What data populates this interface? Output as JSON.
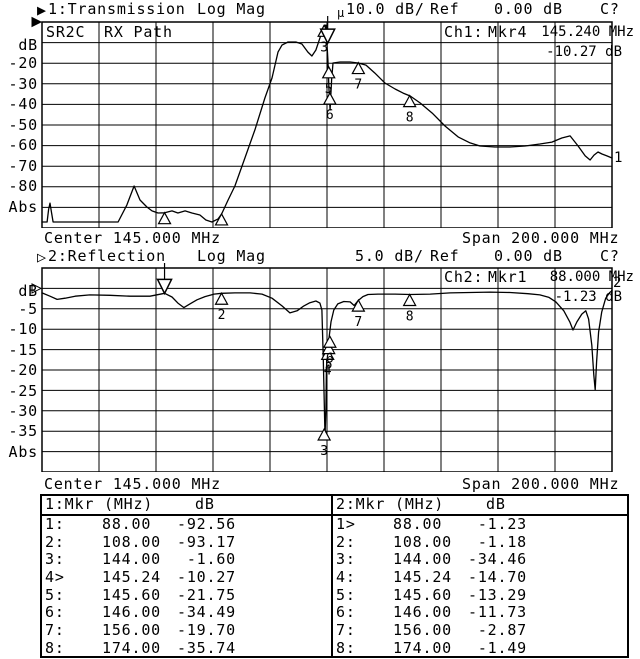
{
  "colors": {
    "foreground": "#000000",
    "background": "#ffffff"
  },
  "channel1": {
    "title": "1:Transmission",
    "format": "Log Mag",
    "scale_glyph": "µ",
    "scale": "10.0 dB/",
    "ref_label": "Ref",
    "ref_value": "0.00 dB",
    "status": "C?",
    "label_cell_1": "SR2C",
    "label_cell_2": "RX Path",
    "readout_channel": "Ch1:",
    "readout_marker": "Mkr4",
    "readout_freq": "145.240 MHz",
    "readout_value": "-10.27 dB",
    "y_unit": "dB",
    "y_bottom": "Abs",
    "y_ticks": [
      "-20",
      "-30",
      "-40",
      "-50",
      "-60",
      "-70",
      "-80"
    ],
    "center": "Center 145.000 MHz",
    "span": "Span 200.000 MHz",
    "trace_label": "1"
  },
  "channel2": {
    "title": "2:Reflection",
    "format": "Log Mag",
    "scale": "5.0 dB/",
    "ref_label": "Ref",
    "ref_value": "0.00 dB",
    "status": "C?",
    "readout_channel": "Ch2:",
    "readout_marker": "Mkr1",
    "readout_freq": "88.000 MHz",
    "readout_value": "-1.23 dB",
    "y_unit": "dB",
    "y_bottom": "Abs",
    "y_ticks": [
      "-5",
      "-10",
      "-15",
      "-20",
      "-25",
      "-30",
      "-35"
    ],
    "center": "Center 145.000 MHz",
    "span": "Span 200.000 MHz",
    "trace_label": "2"
  },
  "tables": [
    {
      "header": "1:Mkr (MHz)",
      "header_db": "dB",
      "rows": [
        {
          "num": "1:",
          "freq": "88.00",
          "db": "-92.56"
        },
        {
          "num": "2:",
          "freq": "108.00",
          "db": "-93.17"
        },
        {
          "num": "3:",
          "freq": "144.00",
          "db": "-1.60"
        },
        {
          "num": "4>",
          "freq": "145.24",
          "db": "-10.27"
        },
        {
          "num": "5:",
          "freq": "145.60",
          "db": "-21.75"
        },
        {
          "num": "6:",
          "freq": "146.00",
          "db": "-34.49"
        },
        {
          "num": "7:",
          "freq": "156.00",
          "db": "-19.70"
        },
        {
          "num": "8:",
          "freq": "174.00",
          "db": "-35.74"
        }
      ]
    },
    {
      "header": "2:Mkr (MHz)",
      "header_db": "dB",
      "rows": [
        {
          "num": "1>",
          "freq": "88.00",
          "db": "-1.23"
        },
        {
          "num": "2:",
          "freq": "108.00",
          "db": "-1.18"
        },
        {
          "num": "3:",
          "freq": "144.00",
          "db": "-34.46"
        },
        {
          "num": "4:",
          "freq": "145.24",
          "db": "-14.70"
        },
        {
          "num": "5:",
          "freq": "145.60",
          "db": "-13.29"
        },
        {
          "num": "6:",
          "freq": "146.00",
          "db": "-11.73"
        },
        {
          "num": "7:",
          "freq": "156.00",
          "db": "-2.87"
        },
        {
          "num": "8:",
          "freq": "174.00",
          "db": "-1.49"
        }
      ]
    }
  ],
  "chart_data": [
    {
      "type": "line",
      "channel": 1,
      "title": "1:Transmission",
      "format": "Log Mag",
      "scale_db_per_div": 10.0,
      "ref_db": 0.0,
      "center_mhz": 145.0,
      "span_mhz": 200.0,
      "x_range_mhz": [
        45,
        245
      ],
      "y_range_db": [
        0,
        -100
      ],
      "grid": true,
      "active_marker": 4,
      "markers": [
        {
          "n": 1,
          "mhz": 88.0,
          "db": -92.56,
          "label_shown": false
        },
        {
          "n": 2,
          "mhz": 108.0,
          "db": -93.17,
          "label_shown": false
        },
        {
          "n": 3,
          "mhz": 144.0,
          "db": -1.6,
          "label_shown": true
        },
        {
          "n": 4,
          "mhz": 145.24,
          "db": -10.27,
          "style": "active"
        },
        {
          "n": 5,
          "mhz": 145.6,
          "db": -21.75,
          "label_shown": true
        },
        {
          "n": 6,
          "mhz": 146.0,
          "db": -34.49,
          "label_shown": true
        },
        {
          "n": 7,
          "mhz": 156.0,
          "db": -19.7,
          "label_shown": true
        },
        {
          "n": 8,
          "mhz": 174.0,
          "db": -35.74,
          "label_shown": true
        }
      ],
      "trace": [
        [
          45.0,
          -97.1
        ],
        [
          46.8,
          -97.1
        ],
        [
          47.3,
          -91.0
        ],
        [
          47.8,
          -87.9
        ],
        [
          48.4,
          -93.0
        ],
        [
          48.9,
          -97.1
        ],
        [
          71.7,
          -97.1
        ],
        [
          74.8,
          -88.8
        ],
        [
          77.3,
          -79.6
        ],
        [
          79.4,
          -86.4
        ],
        [
          81.8,
          -89.8
        ],
        [
          83.6,
          -91.7
        ],
        [
          85.7,
          -92.7
        ],
        [
          88.0,
          -92.6
        ],
        [
          90.6,
          -91.7
        ],
        [
          92.7,
          -92.7
        ],
        [
          95.2,
          -91.7
        ],
        [
          97.6,
          -92.7
        ],
        [
          100.4,
          -93.7
        ],
        [
          102.5,
          -96.1
        ],
        [
          104.6,
          -97.1
        ],
        [
          106.8,
          -95.6
        ],
        [
          108.0,
          -93.2
        ],
        [
          110.3,
          -86.4
        ],
        [
          112.7,
          -79.6
        ],
        [
          116.2,
          -66.0
        ],
        [
          119.7,
          -52.4
        ],
        [
          123.2,
          -36.9
        ],
        [
          125.7,
          -27.2
        ],
        [
          127.8,
          -14.6
        ],
        [
          129.2,
          -11.2
        ],
        [
          131.3,
          -9.7
        ],
        [
          134.1,
          -9.7
        ],
        [
          136.2,
          -10.7
        ],
        [
          138.3,
          -14.6
        ],
        [
          139.7,
          -16.5
        ],
        [
          141.1,
          -13.6
        ],
        [
          142.5,
          -7.8
        ],
        [
          143.9,
          -1.9
        ],
        [
          144.6,
          -1.5
        ],
        [
          145.3,
          -18.4
        ],
        [
          145.7,
          -33.0
        ],
        [
          146.1,
          -42.7
        ],
        [
          146.6,
          -28.2
        ],
        [
          147.1,
          -19.9
        ],
        [
          149.6,
          -19.4
        ],
        [
          153.1,
          -19.4
        ],
        [
          155.9,
          -19.9
        ],
        [
          158.7,
          -20.9
        ],
        [
          161.8,
          -24.8
        ],
        [
          165.3,
          -29.6
        ],
        [
          168.9,
          -32.5
        ],
        [
          171.7,
          -34.5
        ],
        [
          174.2,
          -35.9
        ],
        [
          177.7,
          -39.3
        ],
        [
          181.9,
          -44.2
        ],
        [
          186.4,
          -50.5
        ],
        [
          191.0,
          -55.8
        ],
        [
          195.2,
          -58.7
        ],
        [
          198.7,
          -60.2
        ],
        [
          203.9,
          -60.7
        ],
        [
          209.2,
          -60.7
        ],
        [
          214.5,
          -60.2
        ],
        [
          219.7,
          -59.2
        ],
        [
          223.9,
          -58.3
        ],
        [
          227.4,
          -56.3
        ],
        [
          230.3,
          -55.3
        ],
        [
          233.1,
          -60.2
        ],
        [
          235.6,
          -65.0
        ],
        [
          237.3,
          -67.0
        ],
        [
          238.7,
          -64.6
        ],
        [
          240.1,
          -63.1
        ],
        [
          241.5,
          -64.1
        ],
        [
          243.2,
          -65.0
        ],
        [
          245.0,
          -66.0
        ]
      ]
    },
    {
      "type": "line",
      "channel": 2,
      "title": "2:Reflection",
      "format": "Log Mag",
      "scale_db_per_div": 5.0,
      "ref_db": 0.0,
      "center_mhz": 145.0,
      "span_mhz": 200.0,
      "x_range_mhz": [
        45,
        245
      ],
      "y_range_db": [
        5,
        -45
      ],
      "grid": true,
      "active_marker": 1,
      "markers": [
        {
          "n": 1,
          "mhz": 88.0,
          "db": -1.23,
          "style": "active"
        },
        {
          "n": 2,
          "mhz": 108.0,
          "db": -1.18,
          "label_shown": true
        },
        {
          "n": 3,
          "mhz": 144.0,
          "db": -34.46,
          "label_shown": true
        },
        {
          "n": 4,
          "mhz": 145.24,
          "db": -14.7,
          "label_shown": true
        },
        {
          "n": 5,
          "mhz": 145.6,
          "db": -13.29,
          "label_shown": true
        },
        {
          "n": 6,
          "mhz": 146.0,
          "db": -11.73,
          "label_shown": true
        },
        {
          "n": 7,
          "mhz": 156.0,
          "db": -2.87,
          "label_shown": true
        },
        {
          "n": 8,
          "mhz": 174.0,
          "db": -1.49,
          "label_shown": true
        }
      ],
      "trace": [
        [
          45.0,
          -1.1
        ],
        [
          47.8,
          -1.9
        ],
        [
          50.3,
          -2.7
        ],
        [
          53.1,
          -2.4
        ],
        [
          56.6,
          -1.9
        ],
        [
          61.8,
          -1.6
        ],
        [
          68.9,
          -1.7
        ],
        [
          75.9,
          -1.9
        ],
        [
          82.9,
          -1.9
        ],
        [
          88.0,
          -1.2
        ],
        [
          90.6,
          -2.1
        ],
        [
          92.7,
          -3.6
        ],
        [
          94.8,
          -4.7
        ],
        [
          96.9,
          -3.8
        ],
        [
          99.4,
          -2.8
        ],
        [
          102.2,
          -2.0
        ],
        [
          105.4,
          -1.4
        ],
        [
          108.0,
          -1.2
        ],
        [
          112.7,
          -1.1
        ],
        [
          118.0,
          -1.1
        ],
        [
          122.2,
          -1.4
        ],
        [
          125.7,
          -2.4
        ],
        [
          129.2,
          -4.3
        ],
        [
          132.0,
          -6.0
        ],
        [
          134.5,
          -5.5
        ],
        [
          136.9,
          -4.3
        ],
        [
          139.0,
          -3.5
        ],
        [
          141.1,
          -3.1
        ],
        [
          142.5,
          -3.6
        ],
        [
          143.2,
          -5.3
        ],
        [
          143.7,
          -17.5
        ],
        [
          144.3,
          -36.2
        ],
        [
          144.6,
          -29.8
        ],
        [
          144.8,
          -20.0
        ],
        [
          145.1,
          -15.1
        ],
        [
          145.7,
          -12.2
        ],
        [
          146.4,
          -8.2
        ],
        [
          147.4,
          -5.3
        ],
        [
          148.8,
          -3.8
        ],
        [
          150.9,
          -3.2
        ],
        [
          153.1,
          -3.3
        ],
        [
          154.5,
          -4.2
        ],
        [
          155.9,
          -3.0
        ],
        [
          157.6,
          -2.0
        ],
        [
          159.4,
          -1.5
        ],
        [
          162.9,
          -1.4
        ],
        [
          168.9,
          -1.4
        ],
        [
          174.2,
          -1.5
        ],
        [
          181.2,
          -1.4
        ],
        [
          188.2,
          -1.1
        ],
        [
          195.2,
          -1.0
        ],
        [
          202.2,
          -0.9
        ],
        [
          209.2,
          -1.0
        ],
        [
          215.5,
          -1.3
        ],
        [
          219.7,
          -1.6
        ],
        [
          222.9,
          -2.2
        ],
        [
          225.3,
          -3.3
        ],
        [
          228.1,
          -5.5
        ],
        [
          230.2,
          -8.2
        ],
        [
          231.3,
          -10.2
        ],
        [
          232.7,
          -8.2
        ],
        [
          234.4,
          -6.3
        ],
        [
          235.8,
          -5.5
        ],
        [
          236.8,
          -7.5
        ],
        [
          237.9,
          -13.9
        ],
        [
          238.6,
          -21.2
        ],
        [
          239.1,
          -24.9
        ],
        [
          239.6,
          -18.0
        ],
        [
          240.3,
          -10.7
        ],
        [
          241.4,
          -5.8
        ],
        [
          242.8,
          -2.4
        ],
        [
          244.2,
          -1.0
        ],
        [
          245.0,
          -0.6
        ]
      ]
    }
  ]
}
